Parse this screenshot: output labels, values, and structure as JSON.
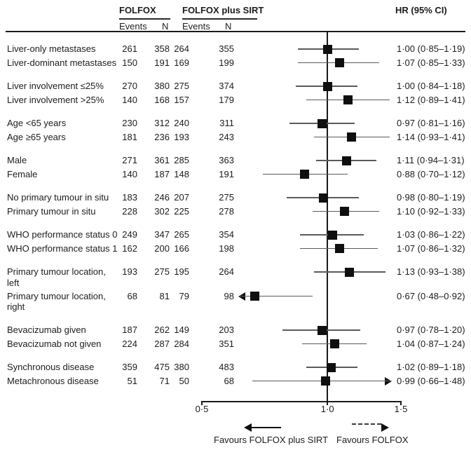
{
  "accent_color": "#1c1c1c",
  "background_color": "#ffffff",
  "chart_data": {
    "type": "forest",
    "title": "",
    "scale": "log",
    "xlim": [
      0.5,
      1.5
    ],
    "grid": false,
    "reference_line": 1.0,
    "column_headers": {
      "arm1": "FOLFOX",
      "arm2": "FOLFOX plus SIRT",
      "events": "Events",
      "n": "N",
      "hr": "HR (95% CI)"
    },
    "axis": {
      "ticks": [
        {
          "value": 0.5,
          "label": "0·5"
        },
        {
          "value": 1.0,
          "label": "1·0"
        },
        {
          "value": 1.5,
          "label": "1·5"
        }
      ]
    },
    "footer": {
      "favours_left": "Favours FOLFOX plus SIRT",
      "favours_right": "Favours FOLFOX"
    },
    "groups": [
      [
        {
          "label_lines": [
            "Liver-only metastases"
          ],
          "folfox_events": "261",
          "folfox_n": "358",
          "sirt_events": "264",
          "sirt_n": "355",
          "hr": 1.0,
          "lo": 0.85,
          "hi": 1.19,
          "hr_text": "1·00 (0·85–1·19)"
        },
        {
          "label_lines": [
            "Liver-dominant metastases"
          ],
          "folfox_events": "150",
          "folfox_n": "191",
          "sirt_events": "169",
          "sirt_n": "199",
          "hr": 1.07,
          "lo": 0.85,
          "hi": 1.33,
          "hr_text": "1·07 (0·85–1·33)"
        }
      ],
      [
        {
          "label_lines": [
            "Liver involvement ≤25%"
          ],
          "folfox_events": "270",
          "folfox_n": "380",
          "sirt_events": "275",
          "sirt_n": "374",
          "hr": 1.0,
          "lo": 0.84,
          "hi": 1.18,
          "hr_text": "1·00 (0·84–1·18)"
        },
        {
          "label_lines": [
            "Liver involvement >25%"
          ],
          "folfox_events": "140",
          "folfox_n": "168",
          "sirt_events": "157",
          "sirt_n": "179",
          "hr": 1.12,
          "lo": 0.89,
          "hi": 1.41,
          "hr_text": "1·12 (0·89–1·41)"
        }
      ],
      [
        {
          "label_lines": [
            "Age <65 years"
          ],
          "folfox_events": "230",
          "folfox_n": "312",
          "sirt_events": "240",
          "sirt_n": "311",
          "hr": 0.97,
          "lo": 0.81,
          "hi": 1.16,
          "hr_text": "0·97 (0·81–1·16)"
        },
        {
          "label_lines": [
            "Age ≥65 years"
          ],
          "folfox_events": "181",
          "folfox_n": "236",
          "sirt_events": "193",
          "sirt_n": "243",
          "hr": 1.14,
          "lo": 0.93,
          "hi": 1.41,
          "hr_text": "1·14 (0·93–1·41)"
        }
      ],
      [
        {
          "label_lines": [
            "Male"
          ],
          "folfox_events": "271",
          "folfox_n": "361",
          "sirt_events": "285",
          "sirt_n": "363",
          "hr": 1.11,
          "lo": 0.94,
          "hi": 1.31,
          "hr_text": "1·11 (0·94–1·31)"
        },
        {
          "label_lines": [
            "Female"
          ],
          "folfox_events": "140",
          "folfox_n": "187",
          "sirt_events": "148",
          "sirt_n": "191",
          "hr": 0.88,
          "lo": 0.7,
          "hi": 1.12,
          "hr_text": "0·88 (0·70–1·12)"
        }
      ],
      [
        {
          "label_lines": [
            "No primary tumour in situ"
          ],
          "folfox_events": "183",
          "folfox_n": "246",
          "sirt_events": "207",
          "sirt_n": "275",
          "hr": 0.98,
          "lo": 0.8,
          "hi": 1.19,
          "hr_text": "0·98 (0·80–1·19)"
        },
        {
          "label_lines": [
            "Primary tumour in situ"
          ],
          "folfox_events": "228",
          "folfox_n": "302",
          "sirt_events": "225",
          "sirt_n": "278",
          "hr": 1.1,
          "lo": 0.92,
          "hi": 1.33,
          "hr_text": "1·10 (0·92–1·33)"
        }
      ],
      [
        {
          "label_lines": [
            "WHO performance status 0"
          ],
          "folfox_events": "249",
          "folfox_n": "347",
          "sirt_events": "265",
          "sirt_n": "354",
          "hr": 1.03,
          "lo": 0.86,
          "hi": 1.22,
          "hr_text": "1·03 (0·86–1·22)"
        },
        {
          "label_lines": [
            "WHO performance status 1"
          ],
          "folfox_events": "162",
          "folfox_n": "200",
          "sirt_events": "166",
          "sirt_n": "198",
          "hr": 1.07,
          "lo": 0.86,
          "hi": 1.32,
          "hr_text": "1·07 (0·86–1·32)"
        }
      ],
      [
        {
          "label_lines": [
            "Primary tumour location,",
            "left"
          ],
          "folfox_events": "193",
          "folfox_n": "275",
          "sirt_events": "195",
          "sirt_n": "264",
          "hr": 1.13,
          "lo": 0.93,
          "hi": 1.38,
          "hr_text": "1·13 (0·93–1·38)"
        },
        {
          "label_lines": [
            "Primary tumour location,",
            "right"
          ],
          "folfox_events": "68",
          "folfox_n": "81",
          "sirt_events": "79",
          "sirt_n": "98",
          "hr": 0.67,
          "lo": 0.48,
          "hi": 0.92,
          "hr_text": "0·67 (0·48–0·92)",
          "arrow": "left"
        }
      ],
      [
        {
          "label_lines": [
            "Bevacizumab given"
          ],
          "folfox_events": "187",
          "folfox_n": "262",
          "sirt_events": "149",
          "sirt_n": "203",
          "hr": 0.97,
          "lo": 0.78,
          "hi": 1.2,
          "hr_text": "0·97 (0·78–1·20)"
        },
        {
          "label_lines": [
            "Bevacizumab not given"
          ],
          "folfox_events": "224",
          "folfox_n": "287",
          "sirt_events": "284",
          "sirt_n": "351",
          "hr": 1.04,
          "lo": 0.87,
          "hi": 1.24,
          "hr_text": "1·04 (0·87–1·24)"
        }
      ],
      [
        {
          "label_lines": [
            "Synchronous disease"
          ],
          "folfox_events": "359",
          "folfox_n": "475",
          "sirt_events": "380",
          "sirt_n": "483",
          "hr": 1.02,
          "lo": 0.89,
          "hi": 1.18,
          "hr_text": "1·02 (0·89–1·18)"
        },
        {
          "label_lines": [
            "Metachronous disease"
          ],
          "folfox_events": "51",
          "folfox_n": "71",
          "sirt_events": "50",
          "sirt_n": "68",
          "hr": 0.99,
          "lo": 0.66,
          "hi": 1.48,
          "hr_text": "0·99 (0·66–1·48)",
          "arrow": "right"
        }
      ]
    ]
  }
}
